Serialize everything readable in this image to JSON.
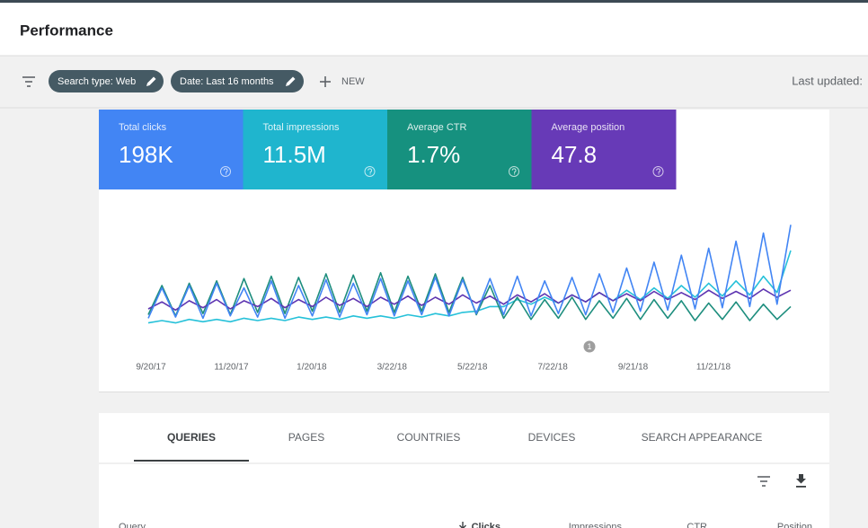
{
  "header": {
    "title": "Performance"
  },
  "toolbar": {
    "chips": [
      "Search type: Web",
      "Date: Last 16 months"
    ],
    "new": "NEW",
    "last_updated": "Last updated:"
  },
  "metrics": [
    {
      "label": "Total clicks",
      "value": "198K",
      "color": "#4285f4"
    },
    {
      "label": "Total impressions",
      "value": "11.5M",
      "color": "#1fb5ce"
    },
    {
      "label": "Average CTR",
      "value": "1.7%",
      "color": "#16917f"
    },
    {
      "label": "Average position",
      "value": "47.8",
      "color": "#673ab7"
    }
  ],
  "chart_data": {
    "type": "line",
    "xticks": [
      "9/20/17",
      "11/20/17",
      "1/20/18",
      "3/22/18",
      "5/22/18",
      "7/22/18",
      "9/21/18",
      "11/21/18"
    ],
    "ylim": [
      0,
      100
    ],
    "annotation": "1",
    "series": [
      {
        "color": "#4285f4",
        "values": [
          12,
          38,
          13,
          40,
          12,
          42,
          14,
          38,
          13,
          44,
          12,
          40,
          14,
          45,
          13,
          42,
          15,
          46,
          14,
          44,
          15,
          47,
          14,
          45,
          16,
          46,
          15,
          48,
          14,
          44,
          16,
          47,
          15,
          50,
          17,
          55,
          18,
          60,
          19,
          66,
          20,
          72,
          21,
          78,
          22,
          85,
          24,
          92
        ]
      },
      {
        "color": "#26c1d9",
        "values": [
          8,
          10,
          8,
          11,
          9,
          11,
          9,
          12,
          10,
          12,
          10,
          13,
          11,
          13,
          11,
          14,
          12,
          14,
          12,
          15,
          13,
          16,
          14,
          17,
          18,
          22,
          22,
          28,
          24,
          30,
          25,
          32,
          26,
          34,
          27,
          36,
          28,
          38,
          29,
          40,
          30,
          42,
          31,
          44,
          32,
          48,
          34,
          70
        ]
      },
      {
        "color": "#1e8e7e",
        "values": [
          15,
          40,
          14,
          42,
          16,
          44,
          15,
          46,
          17,
          48,
          16,
          47,
          18,
          50,
          17,
          49,
          18,
          51,
          17,
          48,
          18,
          50,
          17,
          47,
          15,
          40,
          12,
          30,
          11,
          28,
          12,
          30,
          11,
          27,
          12,
          29,
          11,
          28,
          12,
          27,
          10,
          25,
          11,
          26,
          10,
          24,
          11,
          22
        ]
      },
      {
        "color": "#5e35b1",
        "values": [
          20,
          26,
          19,
          27,
          21,
          28,
          20,
          27,
          22,
          29,
          21,
          28,
          22,
          30,
          23,
          29,
          22,
          30,
          24,
          31,
          23,
          30,
          24,
          32,
          25,
          31,
          24,
          32,
          26,
          33,
          25,
          32,
          26,
          34,
          27,
          33,
          27,
          35,
          28,
          34,
          28,
          36,
          29,
          35,
          29,
          37,
          30,
          36
        ]
      }
    ]
  },
  "tabs": [
    "QUERIES",
    "PAGES",
    "COUNTRIES",
    "DEVICES",
    "SEARCH APPEARANCE"
  ],
  "table_headers": [
    "Query",
    "Clicks",
    "Impressions",
    "CTR",
    "Position"
  ]
}
